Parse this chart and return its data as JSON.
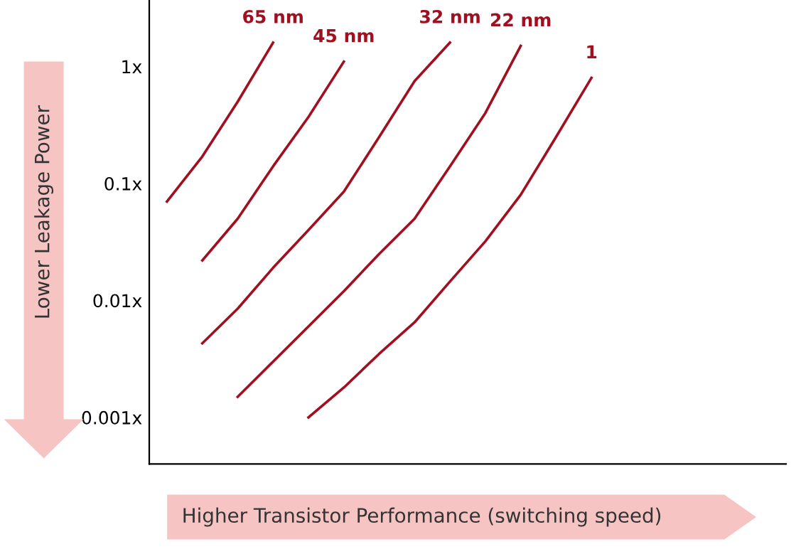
{
  "chart_data": {
    "type": "line",
    "xlabel": "Higher Transistor Performance (switching speed)",
    "ylabel": "Lower Leakage Power",
    "log": "y",
    "ylim": [
      0.0004,
      3.7
    ],
    "yticks": [
      {
        "value": 1,
        "label": "1x"
      },
      {
        "value": 0.1,
        "label": "0.1x"
      },
      {
        "value": 0.01,
        "label": "0.01x"
      },
      {
        "value": 0.001,
        "label": "0.001x"
      }
    ],
    "categories": [
      null,
      null,
      null,
      null,
      null,
      null,
      null,
      null,
      null,
      null,
      null,
      null,
      null,
      null,
      null,
      null,
      null,
      null
    ],
    "tick_labels": "y",
    "grid": false,
    "legend": false,
    "marker": "none",
    "line_style": "solid",
    "series": [
      {
        "name": "65 nm",
        "color": "#a01020",
        "values": [
          0.07,
          0.17,
          0.5,
          1.6,
          null,
          null,
          null,
          null,
          null,
          null,
          null,
          null,
          null,
          null,
          null,
          null,
          null,
          null
        ]
      },
      {
        "name": "45 nm",
        "color": "#a01020",
        "values": [
          null,
          0.022,
          0.05,
          0.14,
          0.37,
          1.1,
          null,
          null,
          null,
          null,
          null,
          null,
          null,
          null,
          null,
          null,
          null,
          null
        ]
      },
      {
        "name": "32 nm",
        "color": "#a01020",
        "values": [
          null,
          0.0043,
          0.0085,
          0.019,
          0.04,
          0.085,
          0.25,
          0.75,
          1.6,
          null,
          null,
          null,
          null,
          null,
          null,
          null,
          null,
          null
        ]
      },
      {
        "name": "22 nm",
        "color": "#a01020",
        "values": [
          null,
          null,
          0.0015,
          0.003,
          0.006,
          0.012,
          0.025,
          0.05,
          0.14,
          0.4,
          1.5,
          null,
          null,
          null,
          null,
          null,
          null,
          null
        ]
      },
      {
        "name": "1",
        "color": "#a01020",
        "values": [
          null,
          null,
          null,
          null,
          0.001,
          0.0018,
          0.0035,
          0.0065,
          0.0145,
          0.032,
          0.08,
          0.25,
          0.8,
          null,
          null,
          null,
          null,
          null
        ]
      }
    ]
  }
}
